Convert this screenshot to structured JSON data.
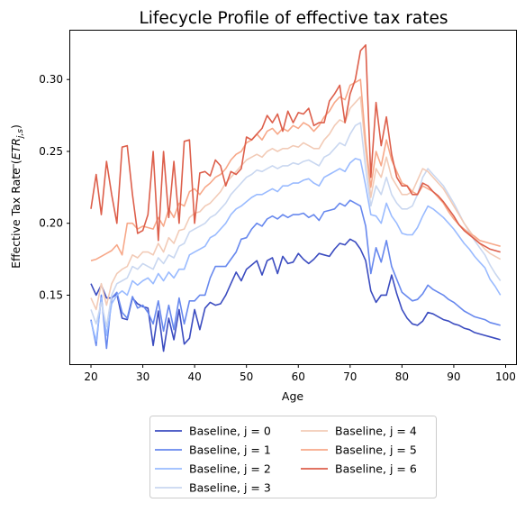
{
  "chart_data": {
    "type": "line",
    "title": "Lifecycle Profile of effective tax rates",
    "xlabel": "Age",
    "ylabel_main": "Effective Tax Rate (",
    "ylabel_math": "ETR",
    "ylabel_sub": "j,s",
    "ylabel_close": ")",
    "xlim": [
      16,
      102
    ],
    "ylim": [
      0.102,
      0.334
    ],
    "xticks": [
      20,
      30,
      40,
      50,
      60,
      70,
      80,
      90,
      100
    ],
    "yticks": [
      0.15,
      0.2,
      0.25,
      0.3
    ],
    "ytick_labels": [
      "0.15",
      "0.20",
      "0.25",
      "0.30"
    ],
    "legend_position": "below plot, two columns",
    "x": [
      20,
      21,
      22,
      23,
      24,
      25,
      26,
      27,
      28,
      29,
      30,
      31,
      32,
      33,
      34,
      35,
      36,
      37,
      38,
      39,
      40,
      41,
      42,
      43,
      44,
      45,
      46,
      47,
      48,
      49,
      50,
      51,
      52,
      53,
      54,
      55,
      56,
      57,
      58,
      59,
      60,
      61,
      62,
      63,
      64,
      65,
      66,
      67,
      68,
      69,
      70,
      71,
      72,
      73,
      74,
      75,
      76,
      77,
      78,
      79,
      80,
      81,
      82,
      83,
      84,
      85,
      86,
      87,
      88,
      89,
      90,
      91,
      92,
      93,
      94,
      95,
      96,
      97,
      98,
      99
    ],
    "series": [
      {
        "name": "Baseline, j = 0",
        "color": "#3b4cc0",
        "values": [
          0.158,
          0.15,
          0.157,
          0.148,
          0.148,
          0.151,
          0.134,
          0.133,
          0.148,
          0.144,
          0.142,
          0.141,
          0.115,
          0.139,
          0.111,
          0.134,
          0.119,
          0.14,
          0.116,
          0.12,
          0.14,
          0.126,
          0.141,
          0.145,
          0.143,
          0.144,
          0.15,
          0.158,
          0.166,
          0.16,
          0.168,
          0.171,
          0.174,
          0.164,
          0.174,
          0.176,
          0.165,
          0.177,
          0.172,
          0.173,
          0.179,
          0.175,
          0.172,
          0.175,
          0.179,
          0.178,
          0.177,
          0.182,
          0.186,
          0.185,
          0.189,
          0.187,
          0.182,
          0.174,
          0.153,
          0.145,
          0.15,
          0.15,
          0.164,
          0.151,
          0.14,
          0.134,
          0.13,
          0.129,
          0.132,
          0.138,
          0.137,
          0.135,
          0.133,
          0.132,
          0.13,
          0.129,
          0.127,
          0.126,
          0.124,
          0.123,
          0.122,
          0.121,
          0.12,
          0.119
        ]
      },
      {
        "name": "Baseline, j = 1",
        "color": "#6788ee",
        "values": [
          0.133,
          0.115,
          0.15,
          0.113,
          0.148,
          0.152,
          0.138,
          0.134,
          0.149,
          0.141,
          0.143,
          0.138,
          0.13,
          0.146,
          0.125,
          0.143,
          0.126,
          0.148,
          0.13,
          0.146,
          0.146,
          0.15,
          0.15,
          0.162,
          0.17,
          0.17,
          0.17,
          0.175,
          0.18,
          0.189,
          0.19,
          0.196,
          0.2,
          0.198,
          0.203,
          0.205,
          0.203,
          0.206,
          0.204,
          0.206,
          0.206,
          0.207,
          0.204,
          0.206,
          0.202,
          0.208,
          0.209,
          0.21,
          0.214,
          0.212,
          0.216,
          0.214,
          0.212,
          0.198,
          0.165,
          0.183,
          0.173,
          0.188,
          0.17,
          0.161,
          0.152,
          0.149,
          0.146,
          0.147,
          0.151,
          0.157,
          0.154,
          0.152,
          0.15,
          0.147,
          0.145,
          0.142,
          0.139,
          0.137,
          0.135,
          0.134,
          0.133,
          0.131,
          0.13,
          0.129
        ]
      },
      {
        "name": "Baseline, j = 2",
        "color": "#9abbff",
        "values": [
          0.132,
          0.118,
          0.148,
          0.122,
          0.144,
          0.15,
          0.153,
          0.15,
          0.16,
          0.157,
          0.16,
          0.162,
          0.158,
          0.165,
          0.16,
          0.166,
          0.162,
          0.168,
          0.168,
          0.178,
          0.18,
          0.182,
          0.184,
          0.19,
          0.192,
          0.196,
          0.2,
          0.206,
          0.21,
          0.212,
          0.215,
          0.218,
          0.22,
          0.22,
          0.222,
          0.224,
          0.222,
          0.226,
          0.226,
          0.228,
          0.228,
          0.23,
          0.231,
          0.228,
          0.226,
          0.232,
          0.234,
          0.236,
          0.238,
          0.236,
          0.242,
          0.245,
          0.244,
          0.226,
          0.206,
          0.205,
          0.2,
          0.214,
          0.205,
          0.2,
          0.193,
          0.192,
          0.192,
          0.197,
          0.205,
          0.212,
          0.21,
          0.207,
          0.204,
          0.2,
          0.196,
          0.191,
          0.186,
          0.182,
          0.177,
          0.173,
          0.169,
          0.161,
          0.156,
          0.15
        ]
      },
      {
        "name": "Baseline, j = 3",
        "color": "#c9d7f0",
        "values": [
          0.14,
          0.13,
          0.145,
          0.128,
          0.15,
          0.158,
          0.16,
          0.162,
          0.17,
          0.168,
          0.172,
          0.17,
          0.168,
          0.176,
          0.172,
          0.178,
          0.176,
          0.184,
          0.186,
          0.194,
          0.196,
          0.198,
          0.2,
          0.204,
          0.206,
          0.21,
          0.214,
          0.22,
          0.224,
          0.228,
          0.232,
          0.234,
          0.237,
          0.236,
          0.238,
          0.24,
          0.238,
          0.24,
          0.24,
          0.242,
          0.241,
          0.243,
          0.244,
          0.242,
          0.24,
          0.246,
          0.248,
          0.252,
          0.256,
          0.254,
          0.262,
          0.268,
          0.27,
          0.238,
          0.212,
          0.226,
          0.22,
          0.232,
          0.22,
          0.214,
          0.21,
          0.21,
          0.212,
          0.22,
          0.232,
          0.238,
          0.234,
          0.23,
          0.226,
          0.22,
          0.214,
          0.207,
          0.2,
          0.194,
          0.188,
          0.183,
          0.178,
          0.171,
          0.165,
          0.16
        ]
      },
      {
        "name": "Baseline, j = 4",
        "color": "#f2cbb7",
        "values": [
          0.148,
          0.14,
          0.158,
          0.143,
          0.158,
          0.165,
          0.168,
          0.17,
          0.178,
          0.176,
          0.18,
          0.18,
          0.178,
          0.186,
          0.18,
          0.19,
          0.186,
          0.195,
          0.196,
          0.204,
          0.207,
          0.208,
          0.212,
          0.214,
          0.218,
          0.222,
          0.228,
          0.232,
          0.236,
          0.24,
          0.244,
          0.246,
          0.248,
          0.246,
          0.25,
          0.252,
          0.25,
          0.252,
          0.252,
          0.254,
          0.253,
          0.256,
          0.254,
          0.252,
          0.252,
          0.258,
          0.262,
          0.268,
          0.272,
          0.27,
          0.28,
          0.284,
          0.288,
          0.25,
          0.218,
          0.238,
          0.232,
          0.246,
          0.232,
          0.226,
          0.22,
          0.22,
          0.222,
          0.23,
          0.238,
          0.236,
          0.232,
          0.228,
          0.224,
          0.218,
          0.212,
          0.206,
          0.2,
          0.195,
          0.19,
          0.186,
          0.182,
          0.179,
          0.177,
          0.175
        ]
      },
      {
        "name": "Baseline, j = 5",
        "color": "#f7a889",
        "values": [
          0.174,
          0.175,
          0.177,
          0.179,
          0.181,
          0.185,
          0.178,
          0.2,
          0.2,
          0.196,
          0.198,
          0.197,
          0.196,
          0.204,
          0.198,
          0.21,
          0.204,
          0.214,
          0.212,
          0.222,
          0.224,
          0.22,
          0.225,
          0.228,
          0.232,
          0.234,
          0.238,
          0.244,
          0.248,
          0.25,
          0.256,
          0.258,
          0.262,
          0.258,
          0.264,
          0.266,
          0.262,
          0.266,
          0.264,
          0.268,
          0.266,
          0.27,
          0.268,
          0.264,
          0.268,
          0.274,
          0.278,
          0.284,
          0.288,
          0.286,
          0.296,
          0.298,
          0.3,
          0.256,
          0.225,
          0.25,
          0.24,
          0.258,
          0.244,
          0.236,
          0.228,
          0.226,
          0.222,
          0.22,
          0.226,
          0.224,
          0.222,
          0.218,
          0.214,
          0.208,
          0.203,
          0.199,
          0.196,
          0.193,
          0.191,
          0.188,
          0.187,
          0.186,
          0.185,
          0.184
        ]
      },
      {
        "name": "Baseline, j = 6",
        "color": "#dd5f4b",
        "values": [
          0.21,
          0.234,
          0.206,
          0.243,
          0.22,
          0.2,
          0.253,
          0.254,
          0.22,
          0.193,
          0.195,
          0.206,
          0.25,
          0.188,
          0.25,
          0.204,
          0.243,
          0.2,
          0.257,
          0.258,
          0.2,
          0.235,
          0.236,
          0.233,
          0.244,
          0.24,
          0.226,
          0.236,
          0.234,
          0.238,
          0.26,
          0.258,
          0.262,
          0.266,
          0.275,
          0.27,
          0.276,
          0.264,
          0.278,
          0.27,
          0.277,
          0.276,
          0.28,
          0.268,
          0.27,
          0.27,
          0.285,
          0.29,
          0.296,
          0.27,
          0.29,
          0.3,
          0.32,
          0.324,
          0.232,
          0.284,
          0.254,
          0.274,
          0.248,
          0.232,
          0.226,
          0.226,
          0.22,
          0.22,
          0.228,
          0.226,
          0.222,
          0.219,
          0.215,
          0.21,
          0.205,
          0.199,
          0.195,
          0.192,
          0.189,
          0.186,
          0.184,
          0.182,
          0.181,
          0.18
        ]
      }
    ]
  }
}
